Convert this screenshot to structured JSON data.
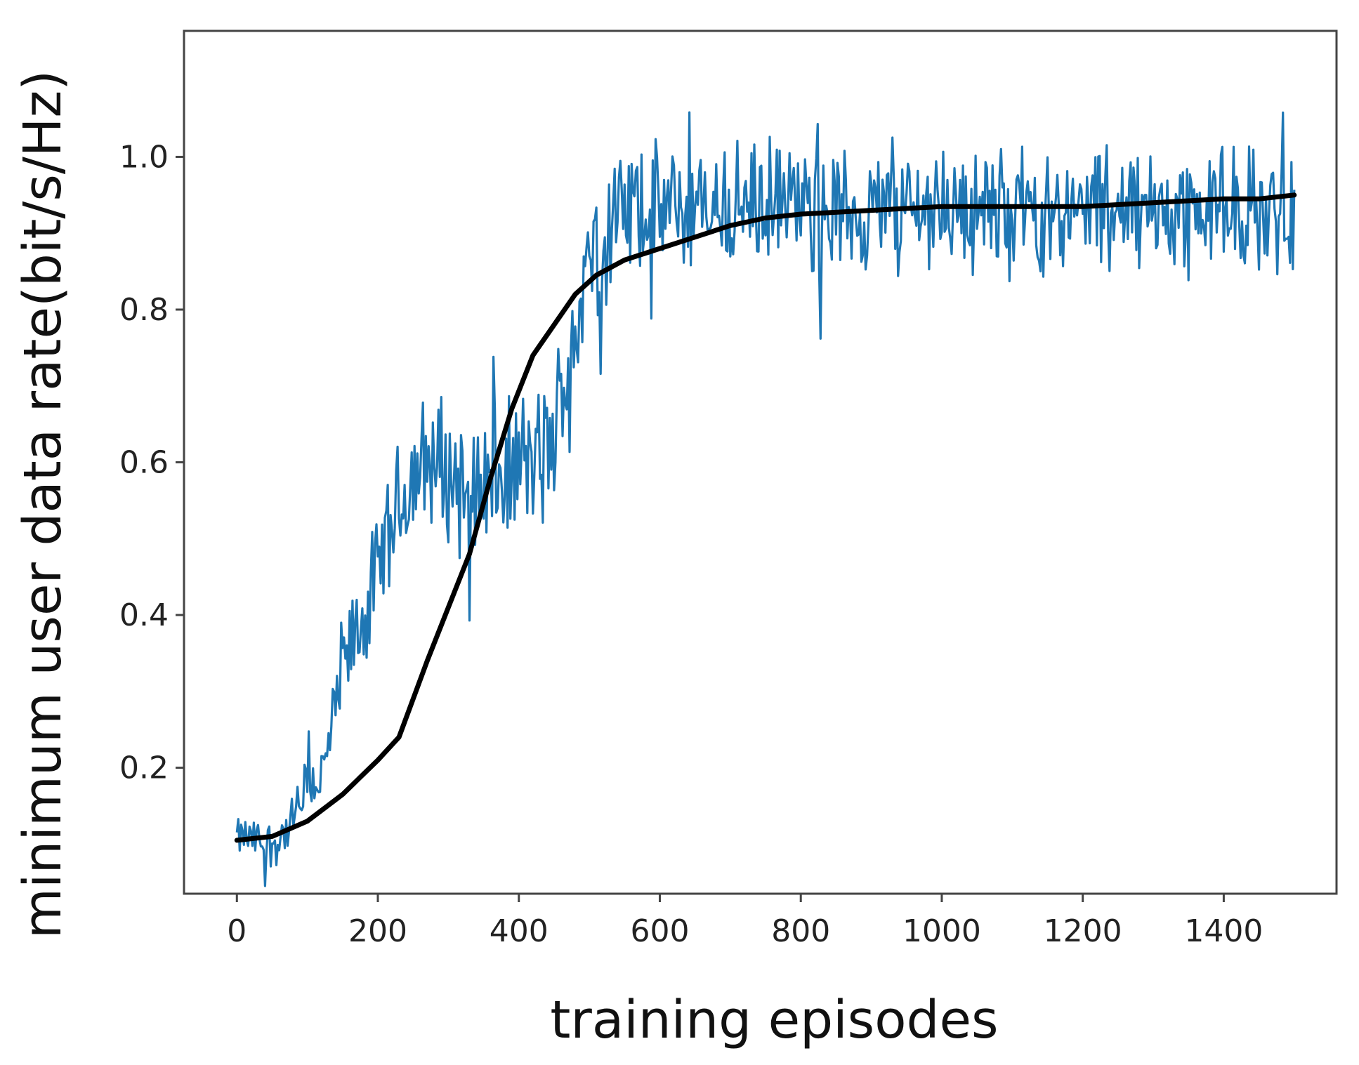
{
  "chart_data": {
    "type": "line",
    "title": "",
    "xlabel": "training episodes",
    "ylabel": "minimum user data rate(bit/s/Hz)",
    "xlim": [
      -75,
      1560
    ],
    "ylim": [
      0.035,
      1.165
    ],
    "x_ticks": [
      0,
      200,
      400,
      600,
      800,
      1000,
      1200,
      1400
    ],
    "x_tick_labels": [
      "0",
      "200",
      "400",
      "600",
      "800",
      "1000",
      "1200",
      "1400"
    ],
    "y_ticks": [
      0.2,
      0.4,
      0.6,
      0.8,
      1.0
    ],
    "y_tick_labels": [
      "0.2",
      "0.4",
      "0.6",
      "0.8",
      "1.0"
    ],
    "grid": false,
    "legend": "none",
    "series": [
      {
        "role": "raw reward per episode (noisy)",
        "color": "#1f77b4",
        "noise_amplitude_note": "jagged trace around the trend points",
        "x": [
          0,
          25,
          50,
          75,
          100,
          125,
          150,
          175,
          200,
          225,
          250,
          275,
          300,
          325,
          350,
          375,
          400,
          425,
          450,
          475,
          500,
          525,
          550,
          575,
          600,
          650,
          700,
          750,
          800,
          850,
          900,
          950,
          1000,
          1050,
          1100,
          1150,
          1200,
          1250,
          1300,
          1350,
          1400,
          1450,
          1500
        ],
        "y": [
          0.11,
          0.105,
          0.1,
          0.12,
          0.17,
          0.2,
          0.33,
          0.38,
          0.45,
          0.53,
          0.58,
          0.6,
          0.59,
          0.57,
          0.58,
          0.57,
          0.6,
          0.6,
          0.62,
          0.76,
          0.86,
          0.9,
          0.93,
          0.93,
          0.93,
          0.93,
          0.93,
          0.94,
          0.93,
          0.93,
          0.93,
          0.93,
          0.94,
          0.93,
          0.93,
          0.93,
          0.93,
          0.93,
          0.93,
          0.93,
          0.93,
          0.93,
          0.93
        ],
        "spread": [
          0.02,
          0.025,
          0.03,
          0.03,
          0.04,
          0.04,
          0.06,
          0.06,
          0.07,
          0.07,
          0.08,
          0.08,
          0.08,
          0.08,
          0.08,
          0.08,
          0.08,
          0.08,
          0.09,
          0.09,
          0.09,
          0.09,
          0.08,
          0.08,
          0.07,
          0.07,
          0.07,
          0.07,
          0.07,
          0.07,
          0.07,
          0.07,
          0.07,
          0.07,
          0.07,
          0.07,
          0.07,
          0.07,
          0.07,
          0.07,
          0.07,
          0.07,
          0.07
        ]
      },
      {
        "role": "smoothed trend",
        "color": "#000000",
        "x": [
          0,
          50,
          100,
          150,
          200,
          230,
          250,
          270,
          300,
          330,
          360,
          390,
          420,
          450,
          480,
          510,
          550,
          600,
          650,
          700,
          750,
          800,
          900,
          1000,
          1100,
          1200,
          1300,
          1400,
          1450,
          1500
        ],
        "y": [
          0.105,
          0.11,
          0.13,
          0.165,
          0.21,
          0.24,
          0.29,
          0.34,
          0.41,
          0.48,
          0.58,
          0.67,
          0.74,
          0.78,
          0.82,
          0.845,
          0.865,
          0.88,
          0.895,
          0.91,
          0.92,
          0.925,
          0.93,
          0.935,
          0.935,
          0.935,
          0.94,
          0.945,
          0.945,
          0.95
        ]
      }
    ]
  }
}
